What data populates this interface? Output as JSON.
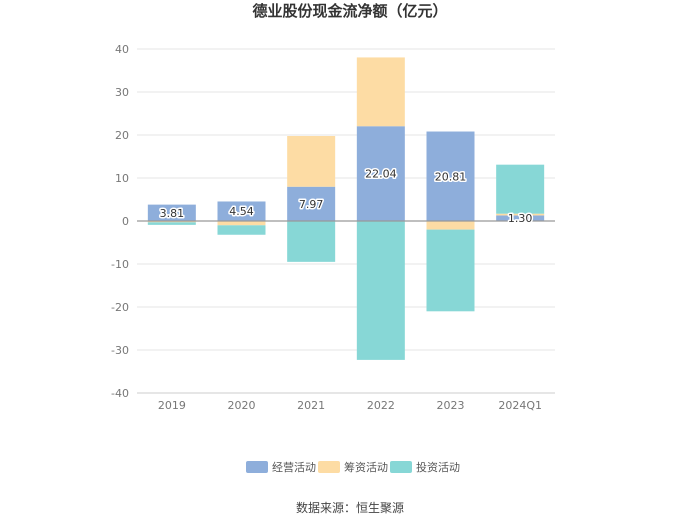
{
  "chart_data": {
    "type": "bar",
    "stacked": true,
    "title": "德业股份现金流净额（亿元）",
    "categories": [
      "2019",
      "2020",
      "2021",
      "2022",
      "2023",
      "2024Q1"
    ],
    "series": [
      {
        "name": "经营活动",
        "color": "#8eaedb",
        "values": [
          3.81,
          4.54,
          7.97,
          22.04,
          20.81,
          1.3
        ]
      },
      {
        "name": "筹资活动",
        "color": "#fddca4",
        "values": [
          -0.3,
          -1.0,
          11.8,
          16.0,
          -2.0,
          0.4
        ]
      },
      {
        "name": "投资活动",
        "color": "#87d7d6",
        "values": [
          -0.6,
          -2.2,
          -9.5,
          -32.3,
          -19.0,
          11.4
        ]
      }
    ],
    "data_labels": [
      "3.81",
      "4.54",
      "7.97",
      "22.04",
      "20.81",
      "1.30"
    ],
    "ylim": [
      -40,
      40
    ],
    "yticks": [
      -40,
      -30,
      -20,
      -10,
      0,
      10,
      20,
      30,
      40
    ],
    "grid": true,
    "legend_position": "bottom"
  },
  "source": "数据来源：恒生聚源"
}
